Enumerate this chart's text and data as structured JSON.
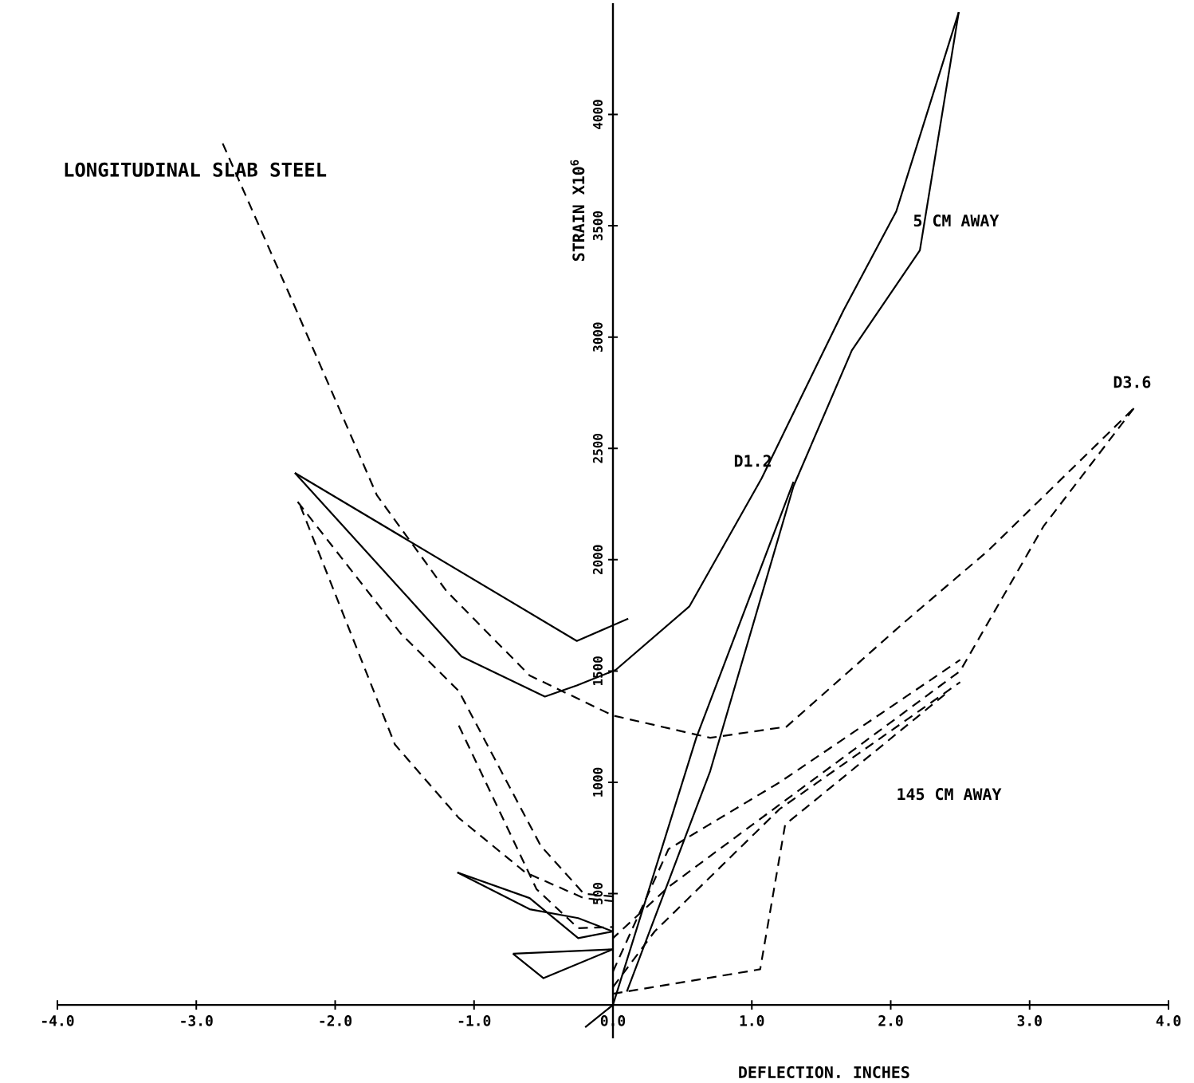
{
  "chart_data": {
    "type": "line",
    "title": "LONGITUDINAL SLAB STEEL",
    "xlabel": "DEFLECTION. INCHES",
    "ylabel": "STRAIN X10$^{6}$",
    "xlim": [
      -4,
      4
    ],
    "ylim": [
      -150,
      4500
    ],
    "xticks": [
      {
        "value": -4,
        "label": "-4.0"
      },
      {
        "value": -3,
        "label": "-3.0"
      },
      {
        "value": -2,
        "label": "-2.0"
      },
      {
        "value": -1,
        "label": "-1.0"
      },
      {
        "value": 0,
        "label": "0.0"
      },
      {
        "value": 1,
        "label": "1.0"
      },
      {
        "value": 2,
        "label": "2.0"
      },
      {
        "value": 3,
        "label": "3.0"
      },
      {
        "value": 4,
        "label": "4.0"
      }
    ],
    "yticks": [
      500,
      1000,
      1500,
      2000,
      2500,
      3000,
      3500,
      4000
    ],
    "grid": false,
    "marker": "none",
    "series": [
      {
        "color": "#000000",
        "line_style": "dashed",
        "x": [
          -2.81,
          -2.3,
          -1.7,
          -1.2,
          -0.6,
          0,
          0.7,
          1.25,
          2.1,
          2.7,
          3.75
        ],
        "values": [
          3870,
          3150,
          2290,
          1860,
          1480,
          1300,
          1200,
          1250,
          1720,
          2040,
          2680
        ]
      },
      {
        "color": "#000000",
        "line_style": "dashed",
        "x": [
          3.75,
          3.1,
          2.5,
          1.2,
          0.4,
          0
        ],
        "values": [
          2680,
          2150,
          1500,
          900,
          530,
          300
        ]
      },
      {
        "color": "#000000",
        "line_style": "dashed",
        "x": [
          0,
          0.4,
          1.2,
          2.5
        ],
        "values": [
          150,
          700,
          1000,
          1550
        ]
      },
      {
        "color": "#000000",
        "line_style": "dashed",
        "x": [
          0,
          0.3,
          1.2,
          2.5
        ],
        "values": [
          80,
          330,
          880,
          1450
        ]
      },
      {
        "color": "#000000",
        "line_style": "dashed",
        "x": [
          0,
          1.06,
          1.24,
          2.4
        ],
        "values": [
          50,
          160,
          810,
          1400
        ]
      },
      {
        "color": "#000000",
        "line_style": "solid",
        "x": [
          -2.29,
          -0.26,
          0.11
        ],
        "values": [
          2390,
          1635,
          1735
        ]
      },
      {
        "color": "#000000",
        "line_style": "solid",
        "x": [
          -2.29,
          -1.09,
          -0.49,
          -0.26,
          0.02,
          0.55,
          1.07,
          1.66,
          2.04,
          2.49
        ],
        "values": [
          2390,
          1565,
          1385,
          1435,
          1505,
          1790,
          2365,
          3120,
          3565,
          4460
        ]
      },
      {
        "color": "#000000",
        "line_style": "solid",
        "x": [
          2.49,
          2.21,
          1.72,
          1.3,
          0.7,
          0.1
        ],
        "values": [
          4460,
          3390,
          2940,
          2330,
          1050,
          60
        ]
      },
      {
        "color": "#000000",
        "line_style": "solid",
        "x": [
          -0.2,
          0,
          0.6,
          1.3
        ],
        "values": [
          -100,
          0,
          1200,
          2350
        ]
      },
      {
        "color": "#000000",
        "line_style": "dashed",
        "x": [
          -2.27,
          -1.53,
          -1.11,
          -0.52,
          -0.21,
          0
        ],
        "values": [
          2260,
          1670,
          1410,
          715,
          500,
          487
        ]
      },
      {
        "color": "#000000",
        "line_style": "dashed",
        "x": [
          -2.25,
          -1.57,
          -1.11,
          -0.63,
          -0.21,
          0
        ],
        "values": [
          2240,
          1170,
          840,
          595,
          480,
          466
        ]
      },
      {
        "color": "#000000",
        "line_style": "dashed",
        "x": [
          -1.11,
          -0.55,
          -0.25,
          0
        ],
        "values": [
          1255,
          520,
          345,
          350
        ]
      },
      {
        "color": "#000000",
        "line_style": "solid",
        "x": [
          -1.12,
          -0.6,
          -0.25,
          0
        ],
        "values": [
          595,
          480,
          300,
          330
        ]
      },
      {
        "color": "#000000",
        "line_style": "solid",
        "x": [
          -1.12,
          -0.6,
          -0.25,
          0
        ],
        "values": [
          595,
          430,
          390,
          330
        ]
      },
      {
        "color": "#000000",
        "line_style": "solid",
        "x": [
          -0.72,
          0
        ],
        "values": [
          230,
          250
        ]
      },
      {
        "color": "#000000",
        "line_style": "solid",
        "x": [
          -0.72,
          -0.5,
          0
        ],
        "values": [
          230,
          120,
          250
        ]
      }
    ],
    "annotations": [
      "5 CM AWAY",
      {
        "text": "D1.2",
        "x": 1.3,
        "y": 2350
      },
      "D3.6",
      "145 CM AWAY"
    ]
  }
}
